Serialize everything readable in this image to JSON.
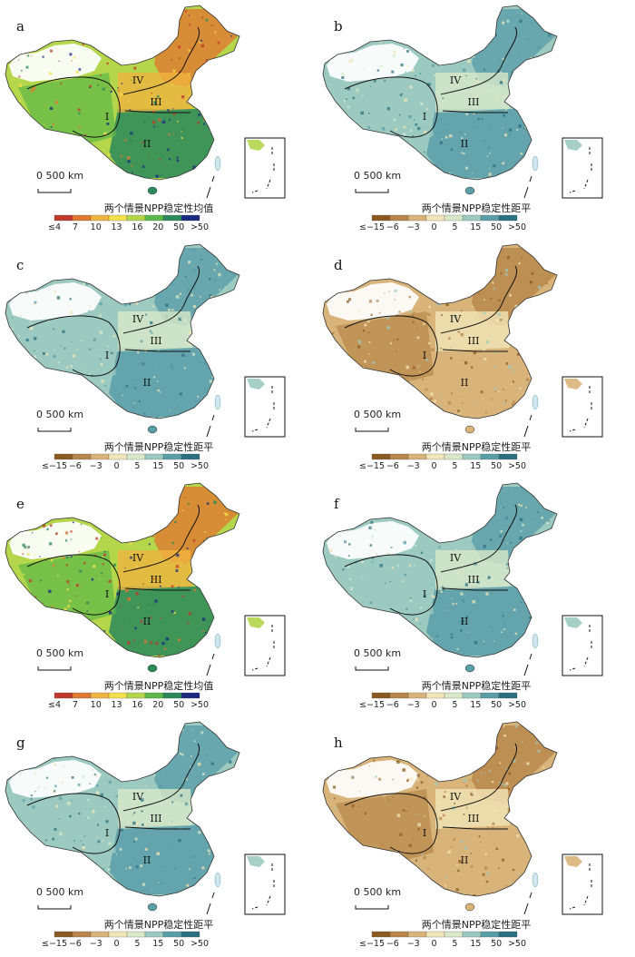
{
  "panels": [
    {
      "id": "a",
      "label": "a",
      "legend_title": "两个情景NPP稳定性均值",
      "scheme": "mean",
      "ticks": [
        "≤4",
        "7",
        "10",
        "13",
        "16",
        "20",
        "50",
        ">50"
      ]
    },
    {
      "id": "b",
      "label": "b",
      "legend_title": "两个情景NPP稳定性距平",
      "scheme": "anom",
      "ticks": [
        "≤−15",
        "−6",
        "−3",
        "0",
        "5",
        "15",
        "50",
        ">50"
      ]
    },
    {
      "id": "c",
      "label": "c",
      "legend_title": "两个情景NPP稳定性距平",
      "scheme": "anom",
      "ticks": [
        "≤−15",
        "−6",
        "−3",
        "0",
        "5",
        "15",
        "50",
        ">50"
      ]
    },
    {
      "id": "d",
      "label": "d",
      "legend_title": "两个情景NPP稳定性距平",
      "scheme": "anom",
      "ticks": [
        "≤−15",
        "−6",
        "−3",
        "0",
        "5",
        "15",
        "50",
        ">50"
      ]
    },
    {
      "id": "e",
      "label": "e",
      "legend_title": "两个情景NPP稳定性均值",
      "scheme": "mean",
      "ticks": [
        "≤4",
        "7",
        "10",
        "13",
        "16",
        "20",
        "50",
        ">50"
      ]
    },
    {
      "id": "f",
      "label": "f",
      "legend_title": "两个情景NPP稳定性距平",
      "scheme": "anom",
      "ticks": [
        "≤−15",
        "−6",
        "−3",
        "0",
        "5",
        "15",
        "50",
        ">50"
      ]
    },
    {
      "id": "g",
      "label": "g",
      "legend_title": "两个情景NPP稳定性距平",
      "scheme": "anom",
      "ticks": [
        "≤−15",
        "−6",
        "−3",
        "0",
        "5",
        "15",
        "50",
        ">50"
      ]
    },
    {
      "id": "h",
      "label": "h",
      "legend_title": "两个情景NPP稳定性距平",
      "scheme": "anom",
      "ticks": [
        "≤−15",
        "−6",
        "−3",
        "0",
        "5",
        "15",
        "50",
        ">50"
      ]
    }
  ],
  "regions": [
    "I",
    "II",
    "III",
    "IV"
  ],
  "scale_bar": {
    "zero": "0",
    "distance": "500 km"
  },
  "colors": {
    "mean": [
      "#c0392b",
      "#e07a30",
      "#f0b440",
      "#f4e04a",
      "#b4d64a",
      "#5cb848",
      "#2a8a5a",
      "#1a2a80"
    ],
    "anom": [
      "#8a5a20",
      "#b8864a",
      "#d8b47a",
      "#f2e6b8",
      "#d8e8c8",
      "#9ccac0",
      "#5a9ea8",
      "#2a7080"
    ]
  }
}
